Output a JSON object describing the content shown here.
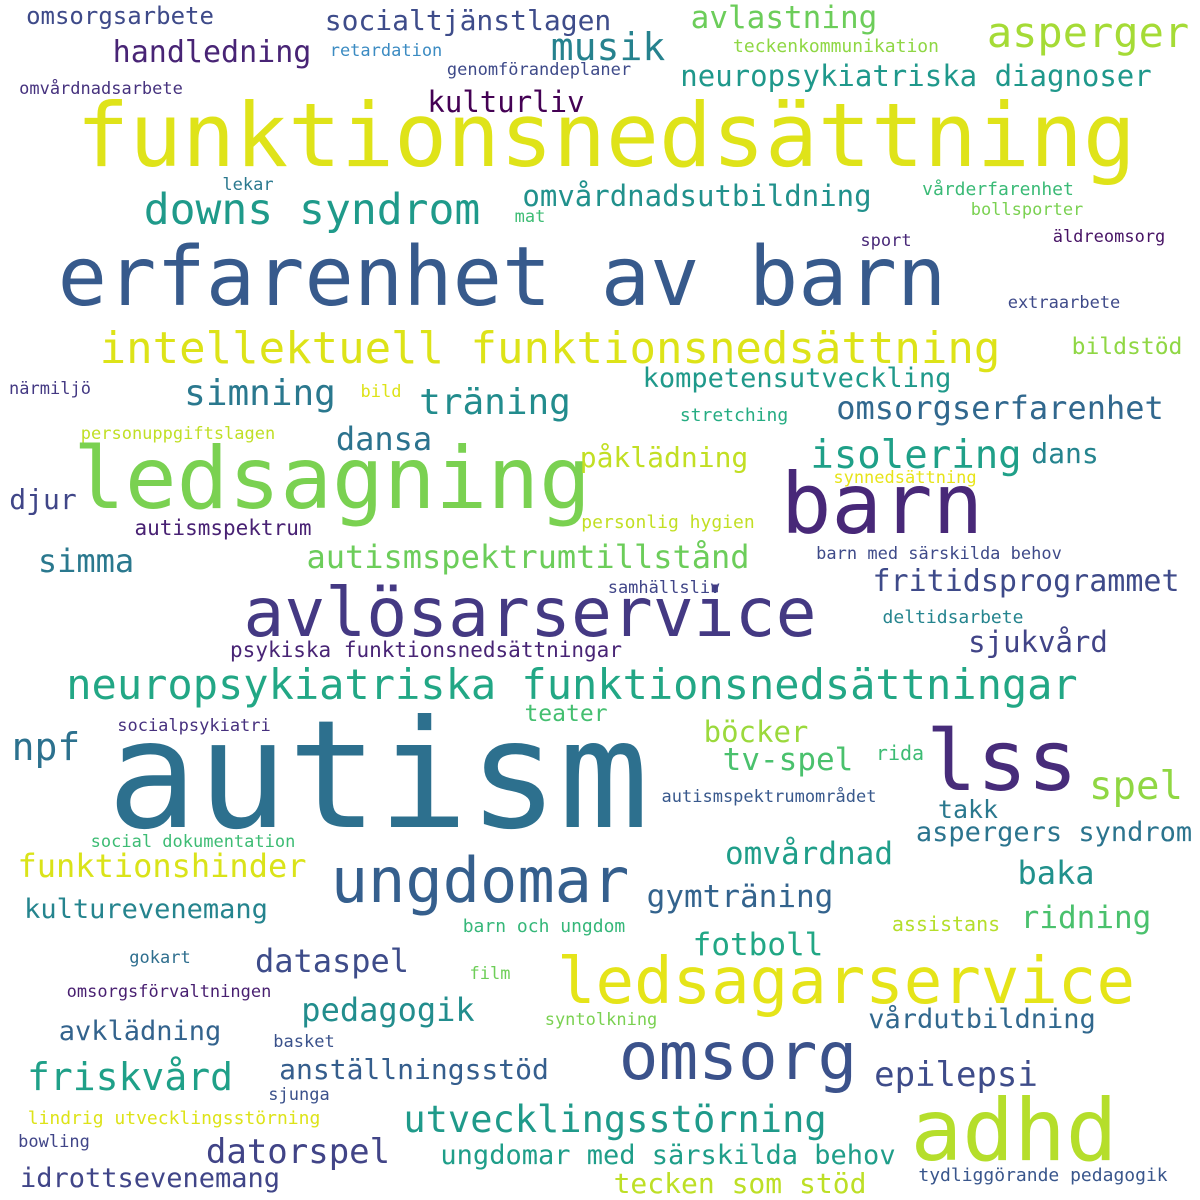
{
  "words": [
    {
      "text": "funktionsnedsättning",
      "color": "#dfe319"
    },
    {
      "text": "erfarenhet av barn",
      "color": "#375a8c"
    },
    {
      "text": "autism",
      "color": "#2d708e"
    },
    {
      "text": "ledsagning",
      "color": "#7ad151"
    },
    {
      "text": "barn",
      "color": "#482878"
    },
    {
      "text": "avlösarservice",
      "color": "#443983"
    },
    {
      "text": "intellektuell funktionsnedsättning",
      "color": "#dde318"
    },
    {
      "text": "neuropsykiatriska funktionsnedsättningar",
      "color": "#22a785"
    },
    {
      "text": "lss",
      "color": "#472c7a"
    },
    {
      "text": "ungdomar",
      "color": "#355f8d"
    },
    {
      "text": "ledsagarservice",
      "color": "#e5e419"
    },
    {
      "text": "omsorg",
      "color": "#3b528b"
    },
    {
      "text": "adhd",
      "color": "#b5de2b"
    },
    {
      "text": "downs syndrom",
      "color": "#1f9a8a"
    },
    {
      "text": "asperger",
      "color": "#a5db36"
    },
    {
      "text": "omsorgsarbete",
      "color": "#3e4a89"
    },
    {
      "text": "socialtjänstlagen",
      "color": "#3e4c8a"
    },
    {
      "text": "avlastning",
      "color": "#6ccd5a"
    },
    {
      "text": "musik",
      "color": "#26828e"
    },
    {
      "text": "handledning",
      "color": "#482475"
    },
    {
      "text": "retardation",
      "color": "#3b8bc2"
    },
    {
      "text": "teckenkommunikation",
      "color": "#8fd744"
    },
    {
      "text": "genomförandeplaner",
      "color": "#3e4a89"
    },
    {
      "text": "neuropsykiatriska diagnoser",
      "color": "#1f988b"
    },
    {
      "text": "omvårdnadsarbete",
      "color": "#46327e"
    },
    {
      "text": "kulturliv",
      "color": "#440154"
    },
    {
      "text": "omvårdnadsutbildning",
      "color": "#21918c"
    },
    {
      "text": "lekar",
      "color": "#2a788e"
    },
    {
      "text": "mat",
      "color": "#3dbc74"
    },
    {
      "text": "vårderfarenhet",
      "color": "#3aba76"
    },
    {
      "text": "bollsporter",
      "color": "#7ad151"
    },
    {
      "text": "sport",
      "color": "#482878"
    },
    {
      "text": "äldreomsorg",
      "color": "#471365"
    },
    {
      "text": "extraarbete",
      "color": "#3e4a89"
    },
    {
      "text": "bildstöd",
      "color": "#8fd744"
    },
    {
      "text": "närmiljö",
      "color": "#443983"
    },
    {
      "text": "bild",
      "color": "#dde318"
    },
    {
      "text": "simning",
      "color": "#2a788e"
    },
    {
      "text": "träning",
      "color": "#228c8d"
    },
    {
      "text": "kompetensutveckling",
      "color": "#1f998a"
    },
    {
      "text": "omsorgserfarenhet",
      "color": "#31688e"
    },
    {
      "text": "stretching",
      "color": "#25ac82"
    },
    {
      "text": "personuppgiftslagen",
      "color": "#c0df25"
    },
    {
      "text": "dansa",
      "color": "#2c738e"
    },
    {
      "text": "isolering",
      "color": "#1fa088"
    },
    {
      "text": "påklädning",
      "color": "#c2df23"
    },
    {
      "text": "dans",
      "color": "#25848e"
    },
    {
      "text": "synnedsättning",
      "color": "#e7e419"
    },
    {
      "text": "djur",
      "color": "#404688"
    },
    {
      "text": "autismspektrum",
      "color": "#482173"
    },
    {
      "text": "personlig hygien",
      "color": "#c2df23"
    },
    {
      "text": "autismspektrumtillstånd",
      "color": "#6ccd5a"
    },
    {
      "text": "simma",
      "color": "#2a788e"
    },
    {
      "text": "barn med särskilda behov",
      "color": "#3e4a89"
    },
    {
      "text": "fritidsprogrammet",
      "color": "#3e4a89"
    },
    {
      "text": "samhällsliv",
      "color": "#404588"
    },
    {
      "text": "deltidsarbete",
      "color": "#25848e"
    },
    {
      "text": "psykiska funktionsnedsättningar",
      "color": "#482475"
    },
    {
      "text": "sjukvård",
      "color": "#414487"
    },
    {
      "text": "teater",
      "color": "#44bf70"
    },
    {
      "text": "socialpsykiatri",
      "color": "#46307e"
    },
    {
      "text": "böcker",
      "color": "#9bd93c"
    },
    {
      "text": "npf",
      "color": "#2c718e"
    },
    {
      "text": "tv-spel",
      "color": "#4ac16d"
    },
    {
      "text": "rida",
      "color": "#3dbc74"
    },
    {
      "text": "spel",
      "color": "#90d743"
    },
    {
      "text": "autismspektrumområdet",
      "color": "#38588c"
    },
    {
      "text": "takk",
      "color": "#2a788e"
    },
    {
      "text": "social dokumentation",
      "color": "#3dbc74"
    },
    {
      "text": "aspergers syndrom",
      "color": "#2b748e"
    },
    {
      "text": "funktionshinder",
      "color": "#dae319"
    },
    {
      "text": "omvårdnad",
      "color": "#1f9e89"
    },
    {
      "text": "baka",
      "color": "#21918c"
    },
    {
      "text": "kulturevenemang",
      "color": "#25848e"
    },
    {
      "text": "gymträning",
      "color": "#33638d"
    },
    {
      "text": "ridning",
      "color": "#4ac16d"
    },
    {
      "text": "barn och ungdom",
      "color": "#35b779"
    },
    {
      "text": "assistans",
      "color": "#b5de2b"
    },
    {
      "text": "fotboll",
      "color": "#22a785"
    },
    {
      "text": "gokart",
      "color": "#2e6e8e"
    },
    {
      "text": "dataspel",
      "color": "#3e4c8a"
    },
    {
      "text": "film",
      "color": "#6ece58"
    },
    {
      "text": "omsorgsförvaltningen",
      "color": "#481f70"
    },
    {
      "text": "pedagogik",
      "color": "#228d8d"
    },
    {
      "text": "vårdutbildning",
      "color": "#31688e"
    },
    {
      "text": "syntolkning",
      "color": "#7ad151"
    },
    {
      "text": "avklädning",
      "color": "#33638d"
    },
    {
      "text": "basket",
      "color": "#3b528b"
    },
    {
      "text": "friskvård",
      "color": "#1fa088"
    },
    {
      "text": "anställningsstöd",
      "color": "#355e8d"
    },
    {
      "text": "epilepsi",
      "color": "#3e4c8a"
    },
    {
      "text": "sjunga",
      "color": "#3b518b"
    },
    {
      "text": "lindrig utvecklingsstörning",
      "color": "#dde318"
    },
    {
      "text": "utvecklingsstörning",
      "color": "#1f9a8a"
    },
    {
      "text": "bowling",
      "color": "#404588"
    },
    {
      "text": "datorspel",
      "color": "#414487"
    },
    {
      "text": "ungdomar med särskilda behov",
      "color": "#1f9e89"
    },
    {
      "text": "tydliggörande pedagogik",
      "color": "#39568c"
    },
    {
      "text": "idrottsevenemang",
      "color": "#404588"
    },
    {
      "text": "tecken som stöd",
      "color": "#bddf26"
    }
  ]
}
